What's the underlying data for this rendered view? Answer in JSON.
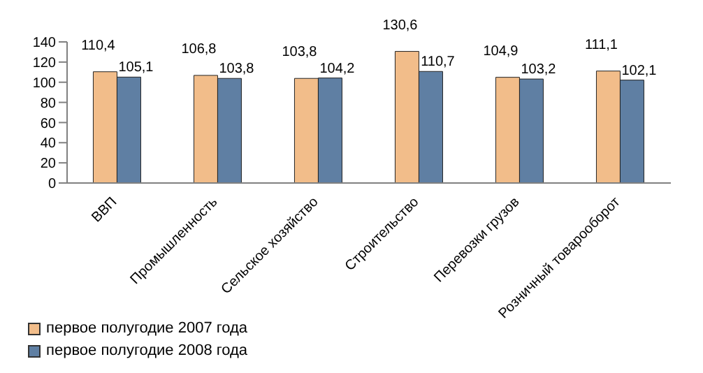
{
  "chart_data": {
    "type": "bar",
    "categories": [
      "ВВП",
      "Промышленность",
      "Сельское хозяйство",
      "Строительство",
      "Перевозки грузов",
      "Розничный товарооборот"
    ],
    "series": [
      {
        "name": "первое полугодие 2007 года",
        "color": "#f2bd8a",
        "values": [
          110.4,
          106.8,
          103.8,
          130.6,
          104.9,
          111.1
        ],
        "value_labels": [
          "110,4",
          "106,8",
          "103,8",
          "130,6",
          "104,9",
          "111,1"
        ]
      },
      {
        "name": "первое полугодие 2008 года",
        "color": "#5f7fa3",
        "values": [
          105.1,
          103.8,
          104.2,
          110.7,
          103.2,
          102.1
        ],
        "value_labels": [
          "105,1",
          "103,8",
          "104,2",
          "110,7",
          "103,2",
          "102,1"
        ]
      }
    ],
    "ylim": [
      0,
      140
    ],
    "yticks": [
      0,
      20,
      40,
      60,
      80,
      100,
      120,
      140
    ],
    "legend": "bottom left",
    "grid": false
  }
}
